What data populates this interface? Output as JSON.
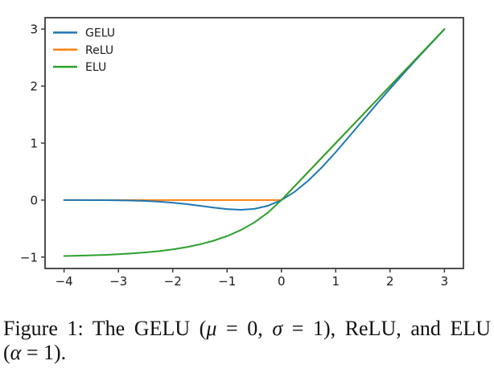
{
  "caption": {
    "line1": [
      {
        "text": "Figure 1: The GELU (",
        "italic": false
      },
      {
        "text": "μ",
        "italic": true
      },
      {
        "text": " = 0, ",
        "italic": false
      },
      {
        "text": "σ",
        "italic": true
      },
      {
        "text": " = 1), ReLU, and ELU",
        "italic": false
      }
    ],
    "line2": [
      {
        "text": "(",
        "italic": false
      },
      {
        "text": "α",
        "italic": true
      },
      {
        "text": " = 1).",
        "italic": false
      }
    ]
  },
  "chart_data": {
    "type": "line",
    "title": "",
    "xlabel": "",
    "ylabel": "",
    "xlim": [
      -4.35,
      3.35
    ],
    "ylim": [
      -1.2,
      3.2
    ],
    "xticks": [
      -4,
      -3,
      -2,
      -1,
      0,
      1,
      2,
      3
    ],
    "yticks": [
      -1,
      0,
      1,
      2,
      3
    ],
    "grid": false,
    "legend": {
      "position": "upper-left",
      "frame": false,
      "entries": [
        "GELU",
        "ReLU",
        "ELU"
      ]
    },
    "axis_color": "#3b3b3b",
    "text_color": "#1a1a1a",
    "x": [
      -4,
      -3.75,
      -3.5,
      -3.25,
      -3,
      -2.75,
      -2.5,
      -2.25,
      -2,
      -1.75,
      -1.5,
      -1.25,
      -1,
      -0.75,
      -0.5,
      -0.25,
      0,
      0.25,
      0.5,
      0.75,
      1,
      1.25,
      1.5,
      1.75,
      2,
      2.25,
      2.5,
      2.75,
      3
    ],
    "series": [
      {
        "name": "GELU",
        "color": "#1f77b4",
        "values": [
          -0.0001,
          -0.0003,
          -0.0008,
          -0.0019,
          -0.004,
          -0.0082,
          -0.0155,
          -0.0275,
          -0.0455,
          -0.0701,
          -0.1002,
          -0.1321,
          -0.1587,
          -0.17,
          -0.1543,
          -0.1003,
          0,
          0.1497,
          0.3457,
          0.58,
          0.8413,
          1.1179,
          1.3998,
          1.6799,
          1.9545,
          2.2225,
          2.4845,
          2.7418,
          2.996
        ]
      },
      {
        "name": "ReLU",
        "color": "#ff7f0e",
        "values": [
          0,
          0,
          0,
          0,
          0,
          0,
          0,
          0,
          0,
          0,
          0,
          0,
          0,
          0,
          0,
          0,
          0,
          0.25,
          0.5,
          0.75,
          1,
          1.25,
          1.5,
          1.75,
          2,
          2.25,
          2.5,
          2.75,
          3
        ]
      },
      {
        "name": "ELU",
        "color": "#2ca02c",
        "values": [
          -0.9817,
          -0.9765,
          -0.9698,
          -0.9612,
          -0.9502,
          -0.9361,
          -0.9179,
          -0.8946,
          -0.8647,
          -0.8262,
          -0.7769,
          -0.7135,
          -0.6321,
          -0.5276,
          -0.3935,
          -0.2212,
          0,
          0.25,
          0.5,
          0.75,
          1,
          1.25,
          1.5,
          1.75,
          2,
          2.25,
          2.5,
          2.75,
          3
        ]
      }
    ],
    "draw_order": [
      "ReLU",
      "GELU",
      "ELU"
    ]
  }
}
